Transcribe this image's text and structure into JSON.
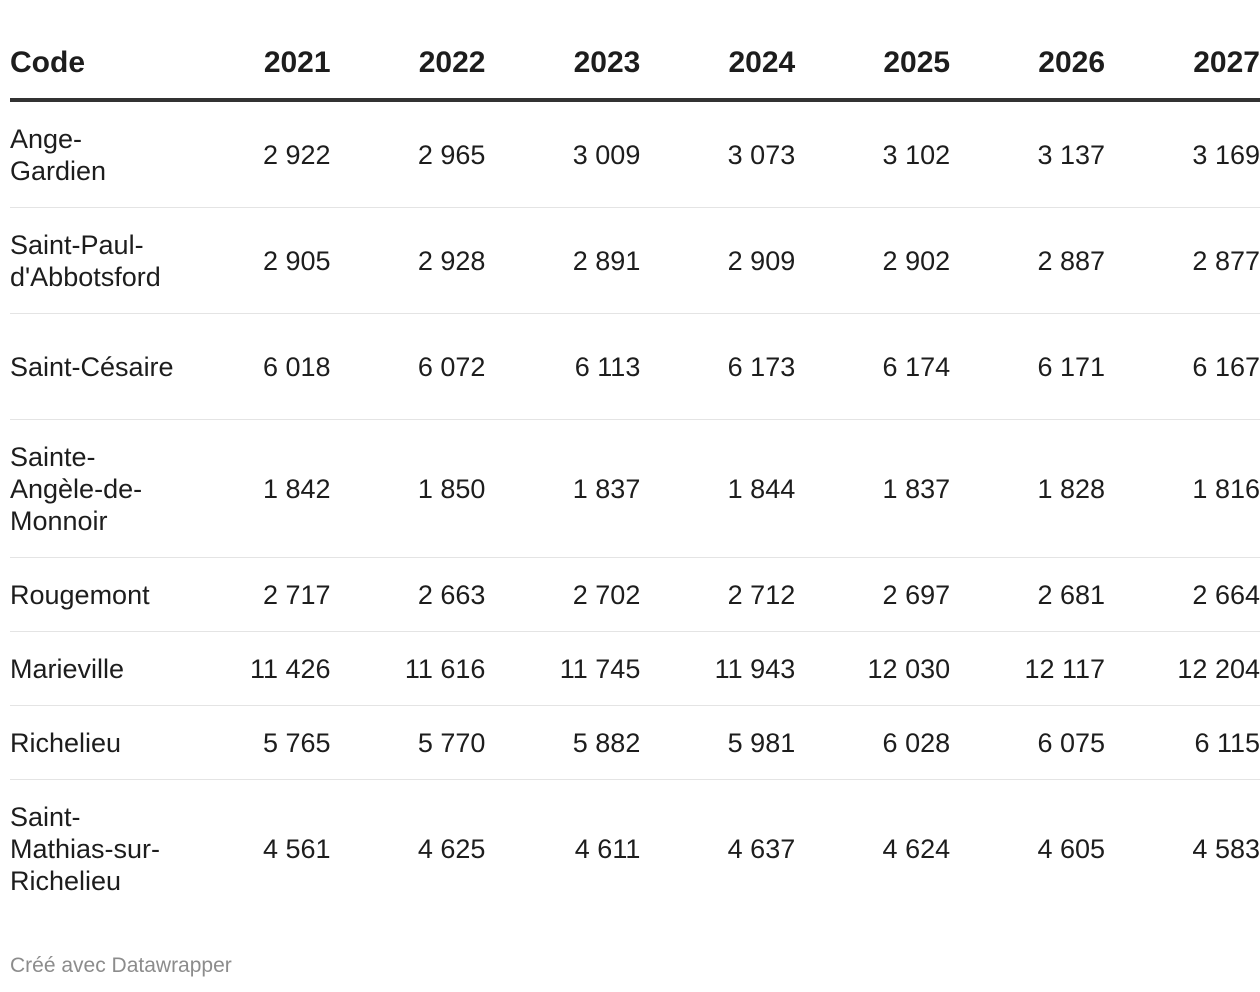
{
  "table": {
    "header": {
      "code": "Code",
      "years": [
        "2021",
        "2022",
        "2023",
        "2024",
        "2025",
        "2026",
        "2027"
      ]
    },
    "rows": [
      {
        "name": "Ange-Gardien",
        "values": [
          "2 922",
          "2 965",
          "3 009",
          "3 073",
          "3 102",
          "3 137",
          "3 169"
        ]
      },
      {
        "name": "Saint-Paul-d'Abbotsford",
        "values": [
          "2 905",
          "2 928",
          "2 891",
          "2 909",
          "2 902",
          "2 887",
          "2 877"
        ]
      },
      {
        "name": "Saint-Césaire",
        "values": [
          "6 018",
          "6 072",
          "6 113",
          "6 173",
          "6 174",
          "6 171",
          "6 167"
        ]
      },
      {
        "name": "Sainte-Angèle-de-Monnoir",
        "values": [
          "1 842",
          "1 850",
          "1 837",
          "1 844",
          "1 837",
          "1 828",
          "1 816"
        ]
      },
      {
        "name": "Rougemont",
        "values": [
          "2 717",
          "2 663",
          "2 702",
          "2 712",
          "2 697",
          "2 681",
          "2 664"
        ]
      },
      {
        "name": "Marieville",
        "values": [
          "11 426",
          "11 616",
          "11 745",
          "11 943",
          "12 030",
          "12 117",
          "12 204"
        ]
      },
      {
        "name": "Richelieu",
        "values": [
          "5 765",
          "5 770",
          "5 882",
          "5 981",
          "6 028",
          "6 075",
          "6 115"
        ]
      },
      {
        "name": "Saint-Mathias-sur-Richelieu",
        "values": [
          "4 561",
          "4 625",
          "4 611",
          "4 637",
          "4 624",
          "4 605",
          "4 583"
        ]
      }
    ]
  },
  "chart_data": {
    "type": "table",
    "columns": [
      "Code",
      "2021",
      "2022",
      "2023",
      "2024",
      "2025",
      "2026",
      "2027"
    ],
    "rows": [
      [
        "Ange-Gardien",
        2922,
        2965,
        3009,
        3073,
        3102,
        3137,
        3169
      ],
      [
        "Saint-Paul-d'Abbotsford",
        2905,
        2928,
        2891,
        2909,
        2902,
        2887,
        2877
      ],
      [
        "Saint-Césaire",
        6018,
        6072,
        6113,
        6173,
        6174,
        6171,
        6167
      ],
      [
        "Sainte-Angèle-de-Monnoir",
        1842,
        1850,
        1837,
        1844,
        1837,
        1828,
        1816
      ],
      [
        "Rougemont",
        2717,
        2663,
        2702,
        2712,
        2697,
        2681,
        2664
      ],
      [
        "Marieville",
        11426,
        11616,
        11745,
        11943,
        12030,
        12117,
        12204
      ],
      [
        "Richelieu",
        5765,
        5770,
        5882,
        5981,
        6028,
        6075,
        6115
      ],
      [
        "Saint-Mathias-sur-Richelieu",
        4561,
        4625,
        4611,
        4637,
        4624,
        4605,
        4583
      ]
    ]
  },
  "footer": {
    "credit": "Créé avec Datawrapper"
  }
}
